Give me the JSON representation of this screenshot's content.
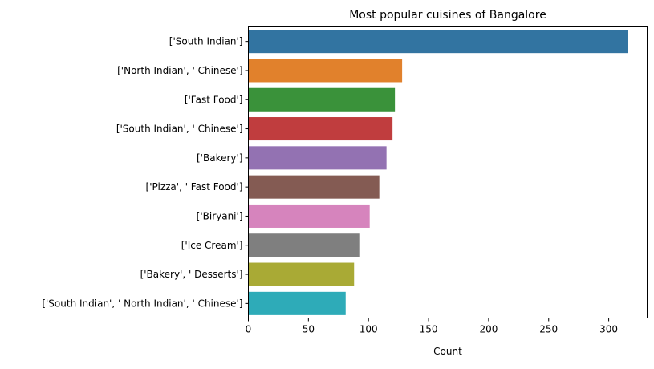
{
  "chart_data": {
    "type": "bar",
    "orientation": "horizontal",
    "title": "Most popular cuisines of Bangalore",
    "xlabel": "Count",
    "ylabel": "",
    "xlim": [
      0,
      332
    ],
    "xticks": [
      0,
      50,
      100,
      150,
      200,
      250,
      300
    ],
    "grid": false,
    "categories": [
      "['South Indian']",
      "['North Indian', ' Chinese']",
      "['Fast Food']",
      "['South Indian', ' Chinese']",
      "['Bakery']",
      "['Pizza', ' Fast Food']",
      "['Biryani']",
      "['Ice Cream']",
      "['Bakery', ' Desserts']",
      "['South Indian', ' North Indian', ' Chinese']"
    ],
    "values": [
      316,
      128,
      122,
      120,
      115,
      109,
      101,
      93,
      88,
      81
    ],
    "colors": [
      "#3274a1",
      "#e1812c",
      "#3a923a",
      "#c03d3e",
      "#9372b2",
      "#845b53",
      "#d684bd",
      "#7f7f7f",
      "#a9aa35",
      "#2eabb8"
    ]
  }
}
